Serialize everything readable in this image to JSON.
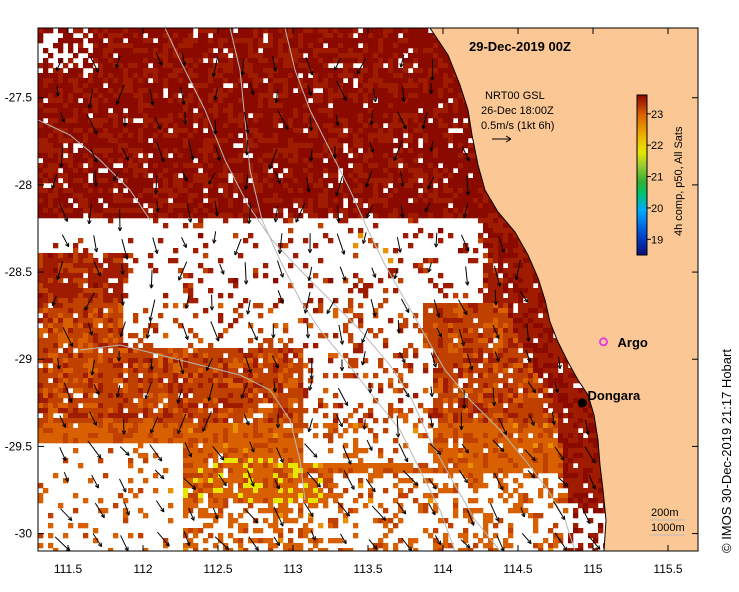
{
  "title": "29-Dec-2019 00Z",
  "vector_info": {
    "line1": "NRT00 GSL",
    "line2": "26-Dec 18:00Z",
    "line3": "0.5m/s (1kt 6h)"
  },
  "colorbar": {
    "title": "4h comp, p50, All Sats",
    "min": 18.5,
    "max": 23.6,
    "ticks": [
      "19",
      "20",
      "21",
      "22",
      "23"
    ],
    "colors": [
      "#0d0d7a",
      "#0044cc",
      "#00aaff",
      "#00c070",
      "#33b030",
      "#9acd32",
      "#e6e600",
      "#f0c000",
      "#e89000",
      "#d86000",
      "#c04000",
      "#a01c00",
      "#8a0a00"
    ]
  },
  "axes": {
    "x_ticks": [
      "111.5",
      "112",
      "112.5",
      "113",
      "113.5",
      "114",
      "114.5",
      "115",
      "115.5"
    ],
    "y_ticks": [
      "-27.5",
      "-28",
      "-28.5",
      "-29",
      "-29.5",
      "-30"
    ],
    "lon_range": [
      111.3,
      115.7
    ],
    "lat_range": [
      -30.1,
      -27.1
    ]
  },
  "places": [
    {
      "name": "Dongara",
      "lon": 114.93,
      "lat": -29.25,
      "marker": "dot",
      "color": "#000000"
    },
    {
      "name": "Argo",
      "lon": 115.07,
      "lat": -28.9,
      "marker": "star",
      "color": "#e040e0"
    }
  ],
  "depth_legend": {
    "a": "200m",
    "b": "1000m"
  },
  "credit": "© IMOS 30-Dec-2019 21:17 Hobart",
  "land_color": "#fbc895",
  "land_label": ""
}
